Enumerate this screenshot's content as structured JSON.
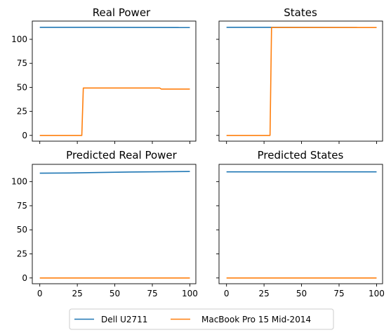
{
  "chart_data": [
    {
      "type": "line",
      "title": "Real Power",
      "xlim": [
        -5,
        104
      ],
      "ylim": [
        -6,
        119
      ],
      "xticks": [
        0,
        25,
        50,
        75,
        100
      ],
      "xtick_labels_visible": false,
      "yticks": [
        0,
        25,
        50,
        75,
        100
      ],
      "ytick_labels": [
        "0",
        "25",
        "50",
        "75",
        "100"
      ],
      "ytick_labels_visible": true,
      "series": [
        {
          "name": "Dell U2711",
          "color": "#1f77b4",
          "x": [
            0,
            100
          ],
          "y": [
            112.5,
            112.3
          ]
        },
        {
          "name": "MacBook Pro 15 Mid-2014",
          "color": "#ff7f0e",
          "x": [
            0,
            28,
            29,
            80,
            81,
            100
          ],
          "y": [
            0,
            0,
            49.3,
            49.3,
            48.2,
            48.2
          ]
        }
      ]
    },
    {
      "type": "line",
      "title": "States",
      "xlim": [
        -5,
        104
      ],
      "ylim": [
        -6,
        119
      ],
      "xticks": [
        0,
        25,
        50,
        75,
        100
      ],
      "xtick_labels_visible": false,
      "yticks": [
        0,
        25,
        50,
        75,
        100
      ],
      "ytick_labels_visible": false,
      "series": [
        {
          "name": "Dell U2711",
          "color": "#1f77b4",
          "x": [
            0,
            100
          ],
          "y": [
            112.5,
            112.3
          ]
        },
        {
          "name": "MacBook Pro 15 Mid-2014",
          "color": "#ff7f0e",
          "x": [
            0,
            29,
            30,
            100
          ],
          "y": [
            0,
            0,
            112.3,
            112.3
          ]
        }
      ]
    },
    {
      "type": "line",
      "title": "Predicted Real Power",
      "xlim": [
        -5,
        104
      ],
      "ylim": [
        -6,
        118
      ],
      "xticks": [
        0,
        25,
        50,
        75,
        100
      ],
      "xtick_labels": [
        "0",
        "25",
        "50",
        "75",
        "100"
      ],
      "xtick_labels_visible": true,
      "yticks": [
        0,
        25,
        50,
        75,
        100
      ],
      "ytick_labels": [
        "0",
        "25",
        "50",
        "75",
        "100"
      ],
      "ytick_labels_visible": true,
      "series": [
        {
          "name": "Dell U2711",
          "color": "#1f77b4",
          "x": [
            0,
            20,
            40,
            60,
            80,
            100
          ],
          "y": [
            108.8,
            109.0,
            109.6,
            110.0,
            110.3,
            110.6
          ]
        },
        {
          "name": "MacBook Pro 15 Mid-2014",
          "color": "#ff7f0e",
          "x": [
            0,
            100
          ],
          "y": [
            0,
            0
          ]
        }
      ]
    },
    {
      "type": "line",
      "title": "Predicted States",
      "xlim": [
        -5,
        104
      ],
      "ylim": [
        -6,
        118
      ],
      "xticks": [
        0,
        25,
        50,
        75,
        100
      ],
      "xtick_labels": [
        "0",
        "25",
        "50",
        "75",
        "100"
      ],
      "xtick_labels_visible": true,
      "yticks": [
        0,
        25,
        50,
        75,
        100
      ],
      "ytick_labels_visible": false,
      "series": [
        {
          "name": "Dell U2711",
          "color": "#1f77b4",
          "x": [
            0,
            100
          ],
          "y": [
            110.2,
            110.2
          ]
        },
        {
          "name": "MacBook Pro 15 Mid-2014",
          "color": "#ff7f0e",
          "x": [
            0,
            100
          ],
          "y": [
            0,
            0
          ]
        }
      ]
    }
  ],
  "legend": {
    "placement": "bottom-center",
    "entries": [
      {
        "label": "Dell U2711",
        "color": "#1f77b4"
      },
      {
        "label": "MacBook Pro 15 Mid-2014",
        "color": "#ff7f0e"
      }
    ]
  }
}
